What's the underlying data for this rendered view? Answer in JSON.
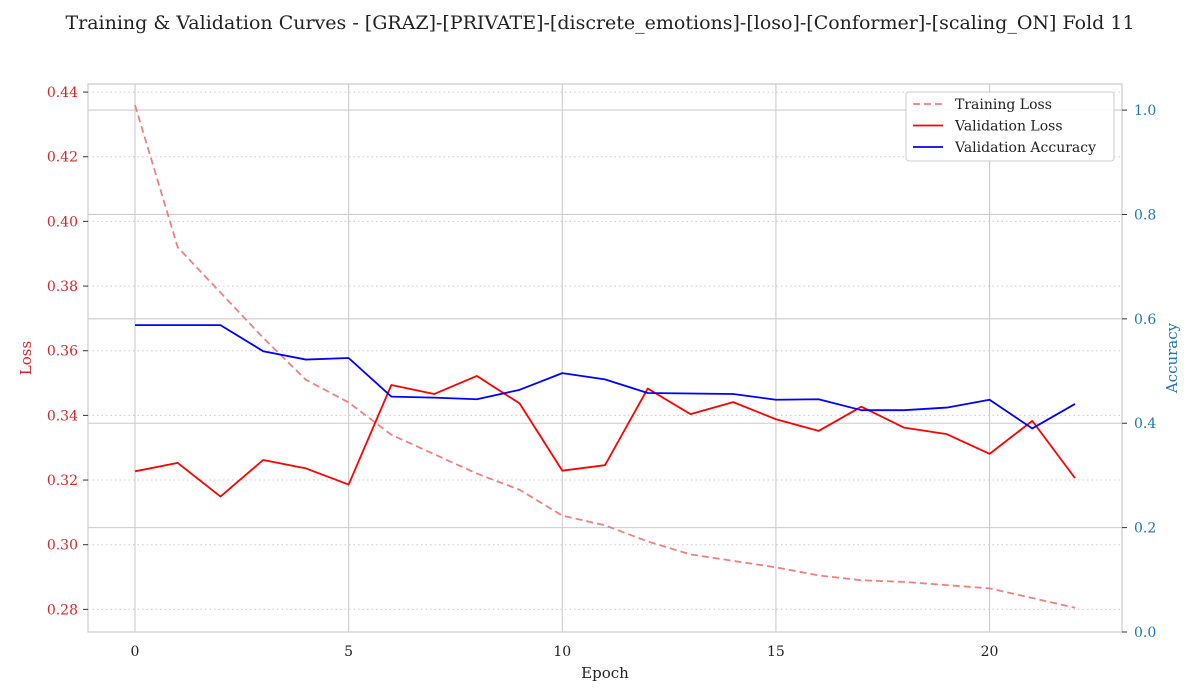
{
  "chart_data": {
    "type": "line",
    "title": "Training & Validation Curves - [GRAZ]-[PRIVATE]-[discrete_emotions]-[loso]-[Conformer]-[scaling_ON] Fold 11",
    "xlabel": "Epoch",
    "ylabel_left": "Loss",
    "ylabel_right": "Accuracy",
    "xlim": [
      -1.1,
      23.1
    ],
    "ylim_left": [
      0.273,
      0.4425
    ],
    "ylim_right": [
      0.0,
      1.05
    ],
    "x_ticks": [
      0,
      5,
      10,
      15,
      20
    ],
    "y_ticks_left": [
      0.28,
      0.3,
      0.32,
      0.34,
      0.36,
      0.38,
      0.4,
      0.42,
      0.44
    ],
    "y_ticks_right": [
      0.0,
      0.2,
      0.4,
      0.6,
      0.8,
      1.0
    ],
    "grid": true,
    "legend_position": "top-right",
    "x": [
      0,
      1,
      2,
      3,
      4,
      5,
      6,
      7,
      8,
      9,
      10,
      11,
      12,
      13,
      14,
      15,
      16,
      17,
      18,
      19,
      20,
      21,
      22
    ],
    "series": [
      {
        "name": "Training Loss",
        "axis": "left",
        "color": "#f08080",
        "style": "dashed",
        "values": [
          0.436,
          0.392,
          0.378,
          0.364,
          0.351,
          0.344,
          0.334,
          0.328,
          0.322,
          0.317,
          0.309,
          0.306,
          0.301,
          0.297,
          0.295,
          0.293,
          0.2905,
          0.289,
          0.2885,
          0.2875,
          0.2865,
          0.2835,
          0.2805
        ]
      },
      {
        "name": "Validation Loss",
        "axis": "left",
        "color": "#ff0000",
        "style": "solid",
        "values": [
          0.3227,
          0.3253,
          0.3149,
          0.3262,
          0.3236,
          0.3186,
          0.3494,
          0.3466,
          0.3522,
          0.3437,
          0.3229,
          0.3246,
          0.3483,
          0.3404,
          0.3441,
          0.3388,
          0.3352,
          0.3427,
          0.3362,
          0.3342,
          0.3281,
          0.3383,
          0.3206
        ]
      },
      {
        "name": "Validation Accuracy",
        "axis": "right",
        "color": "#0000ff",
        "style": "solid",
        "values": [
          0.588,
          0.588,
          0.588,
          0.538,
          0.522,
          0.525,
          0.451,
          0.449,
          0.446,
          0.464,
          0.496,
          0.484,
          0.458,
          0.457,
          0.456,
          0.445,
          0.446,
          0.425,
          0.425,
          0.43,
          0.445,
          0.39,
          0.437
        ]
      }
    ]
  },
  "colors": {
    "left_axis": "#d62728",
    "right_axis": "#1f77b4",
    "grid": "#cccccc",
    "spine": "#cccccc"
  }
}
